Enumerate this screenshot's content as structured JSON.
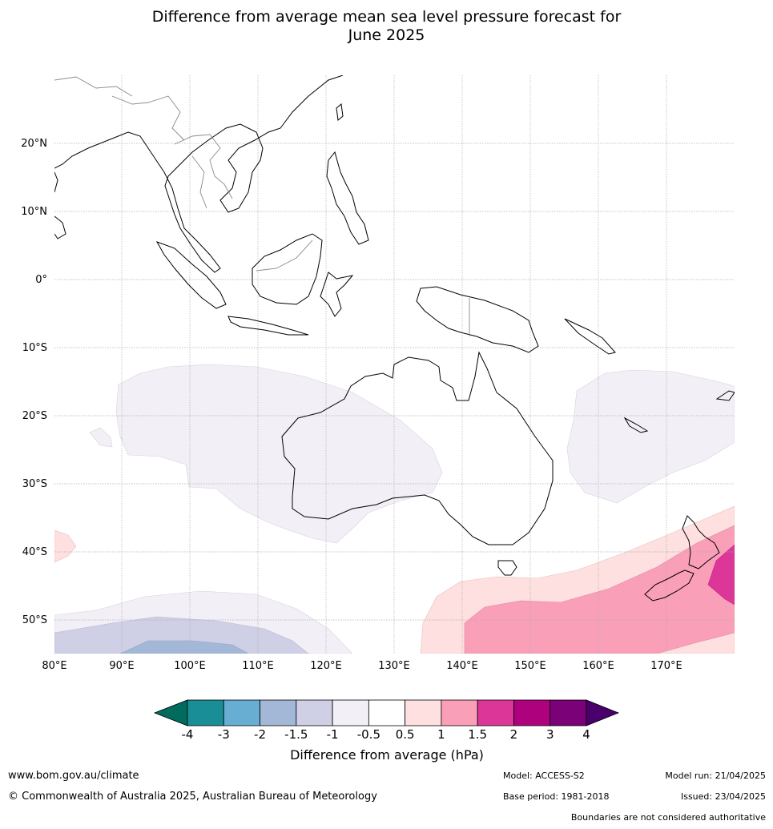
{
  "title_line1": "Difference from average mean sea level pressure forecast for",
  "title_line2": "June 2025",
  "lon_labels": [
    "80°E",
    "90°E",
    "100°E",
    "110°E",
    "120°E",
    "130°E",
    "140°E",
    "150°E",
    "160°E",
    "170°E"
  ],
  "lat_labels": [
    "20°N",
    "10°N",
    "0°",
    "10°S",
    "20°S",
    "30°S",
    "40°S",
    "50°S"
  ],
  "colorbar": {
    "title": "Difference from average (hPa)",
    "ticks": [
      "-4",
      "-3",
      "-2",
      "-1.5",
      "-1",
      "-0.5",
      "0.5",
      "1",
      "1.5",
      "2",
      "3",
      "4"
    ],
    "colors": [
      "#1a8e96",
      "#68aed2",
      "#a3b8d6",
      "#cfcfe5",
      "#f3eff6",
      "#ffffff",
      "#fde0df",
      "#f99fb8",
      "#dc3798",
      "#ad017e",
      "#7a0177"
    ],
    "under_color": "#016b5e",
    "over_color": "#49006a"
  },
  "footer": {
    "url": "www.bom.gov.au/climate",
    "copyright": "© Commonwealth of Australia 2025, Australian Bureau of Meteorology",
    "model": "Model: ACCESS-S2",
    "base_period": "Base period: 1981-2018",
    "model_run": "Model run: 21/04/2025",
    "issued": "Issued: 23/04/2025",
    "disclaimer": "Boundaries are not considered authoritative"
  }
}
